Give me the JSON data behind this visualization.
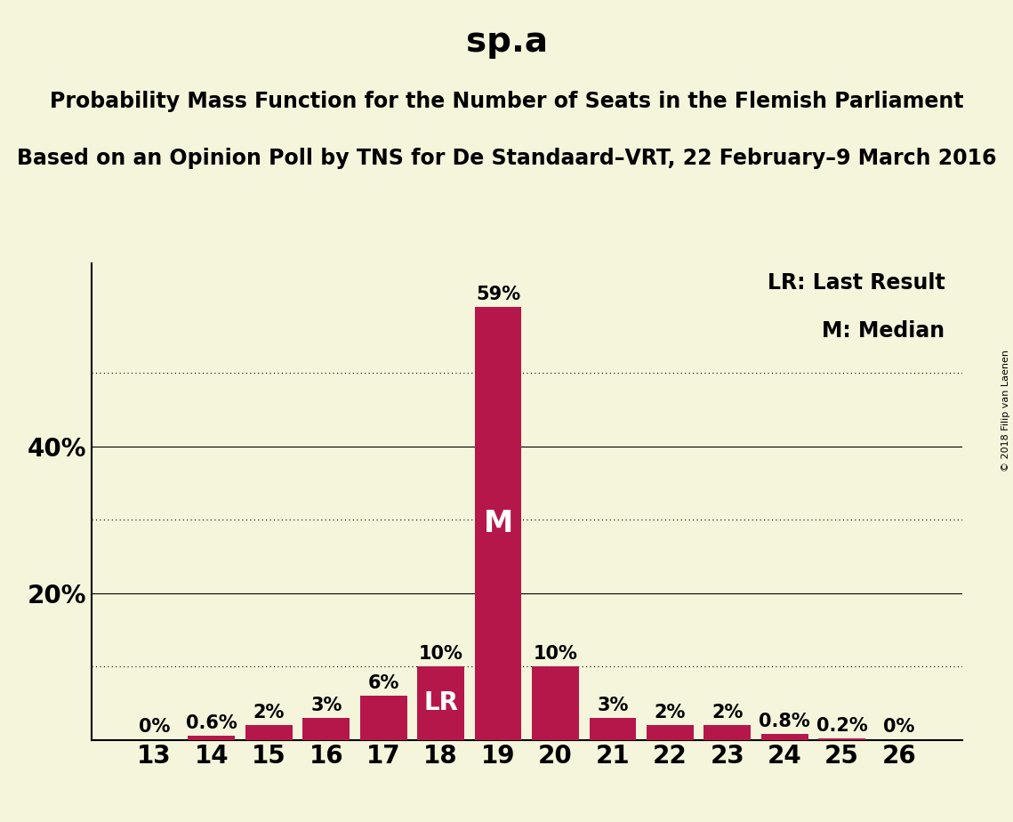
{
  "title": "sp.a",
  "subtitle1": "Probability Mass Function for the Number of Seats in the Flemish Parliament",
  "subtitle2": "Based on an Opinion Poll by TNS for De Standaard–VRT, 22 February–9 March 2016",
  "copyright": "© 2018 Filip van Laenen",
  "categories": [
    13,
    14,
    15,
    16,
    17,
    18,
    19,
    20,
    21,
    22,
    23,
    24,
    25,
    26
  ],
  "values": [
    0.0,
    0.6,
    2.0,
    3.0,
    6.0,
    10.0,
    59.0,
    10.0,
    3.0,
    2.0,
    2.0,
    0.8,
    0.2,
    0.0
  ],
  "labels": [
    "0%",
    "0.6%",
    "2%",
    "3%",
    "6%",
    "10%",
    "59%",
    "10%",
    "3%",
    "2%",
    "2%",
    "0.8%",
    "0.2%",
    "0%"
  ],
  "bar_color": "#B5174B",
  "background_color": "#F5F5DC",
  "last_result_seat": 18,
  "median_seat": 19,
  "lr_label": "LR",
  "median_label": "M",
  "lr_legend": "LR: Last Result",
  "median_legend": "M: Median",
  "ylim": [
    0,
    65
  ],
  "major_yticks": [
    20,
    40
  ],
  "minor_yticks": [
    10,
    30,
    50
  ],
  "title_fontsize": 28,
  "subtitle_fontsize": 17,
  "tick_fontsize": 20,
  "label_fontsize": 15,
  "legend_fontsize": 17,
  "lr_fontsize": 20,
  "m_fontsize": 24
}
